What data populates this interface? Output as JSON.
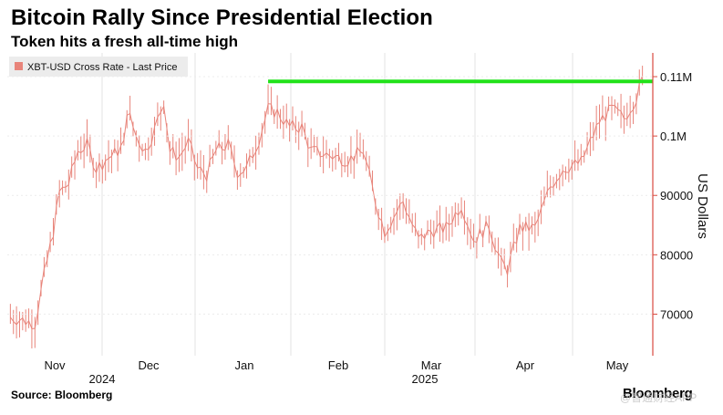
{
  "header": {
    "title": "Bitcoin Rally Since Presidential Election",
    "subtitle": "Token hits a fresh all-time high"
  },
  "footer": {
    "source": "Source: Bloomberg",
    "brand": "Bloomberg",
    "watermark": "@智通财经APP"
  },
  "colors": {
    "series": "#e8847a",
    "highline": "#22e21a",
    "axis": "#d94a3f",
    "grid": "#e3e3e3",
    "legend_bg": "#ececec"
  },
  "chart_data": {
    "type": "line",
    "legend": "XBT-USD Cross Rate - Last Price",
    "ylabel": "US Dollars",
    "y_axis_position": "right",
    "ylim": [
      63000,
      114000
    ],
    "yticks": [
      {
        "value": 70000,
        "label": "70000"
      },
      {
        "value": 80000,
        "label": "80000"
      },
      {
        "value": 90000,
        "label": "90000"
      },
      {
        "value": 100000,
        "label": "0.1M"
      },
      {
        "value": 110000,
        "label": "0.11M"
      }
    ],
    "x_month_labels": [
      "Nov",
      "Dec",
      "Jan",
      "Feb",
      "Mar",
      "Apr",
      "May"
    ],
    "x_year_labels": [
      "2024",
      "2025"
    ],
    "reference_line": {
      "value": 109200,
      "start": "2025-01-20"
    },
    "series": [
      {
        "x": [
          "2024-10-28",
          "2024-11-01",
          "2024-11-05",
          "2024-11-08",
          "2024-11-11",
          "2024-11-13",
          "2024-11-16",
          "2024-11-19",
          "2024-11-22",
          "2024-11-25",
          "2024-11-28",
          "2024-12-01",
          "2024-12-04",
          "2024-12-05",
          "2024-12-08",
          "2024-12-11",
          "2024-12-14",
          "2024-12-17",
          "2024-12-19",
          "2024-12-22",
          "2024-12-25",
          "2024-12-28",
          "2024-12-31",
          "2025-01-03",
          "2025-01-07",
          "2025-01-10",
          "2025-01-13",
          "2025-01-17",
          "2025-01-20",
          "2025-01-23",
          "2025-01-27",
          "2025-01-31",
          "2025-02-03",
          "2025-02-07",
          "2025-02-11",
          "2025-02-15",
          "2025-02-20",
          "2025-02-24",
          "2025-02-27",
          "2025-03-02",
          "2025-03-05",
          "2025-03-10",
          "2025-03-14",
          "2025-03-19",
          "2025-03-24",
          "2025-03-28",
          "2025-04-02",
          "2025-04-06",
          "2025-04-08",
          "2025-04-12",
          "2025-04-17",
          "2025-04-22",
          "2025-04-26",
          "2025-05-02",
          "2025-05-08",
          "2025-05-12",
          "2025-05-16",
          "2025-05-20",
          "2025-05-22"
        ],
        "y": [
          69500,
          69000,
          68500,
          76500,
          84000,
          90500,
          92000,
          97500,
          98500,
          94500,
          96000,
          97000,
          98500,
          104500,
          100000,
          97500,
          101000,
          106000,
          97500,
          96500,
          99000,
          94500,
          93500,
          97500,
          98500,
          94000,
          94500,
          99500,
          104500,
          104000,
          101500,
          101500,
          97500,
          97000,
          96500,
          96000,
          97500,
          89000,
          84000,
          86500,
          89000,
          82500,
          84000,
          84500,
          88500,
          82500,
          85000,
          78500,
          77500,
          84500,
          84500,
          91500,
          94500,
          95500,
          102500,
          104500,
          103000,
          106500,
          109500
        ]
      }
    ]
  }
}
